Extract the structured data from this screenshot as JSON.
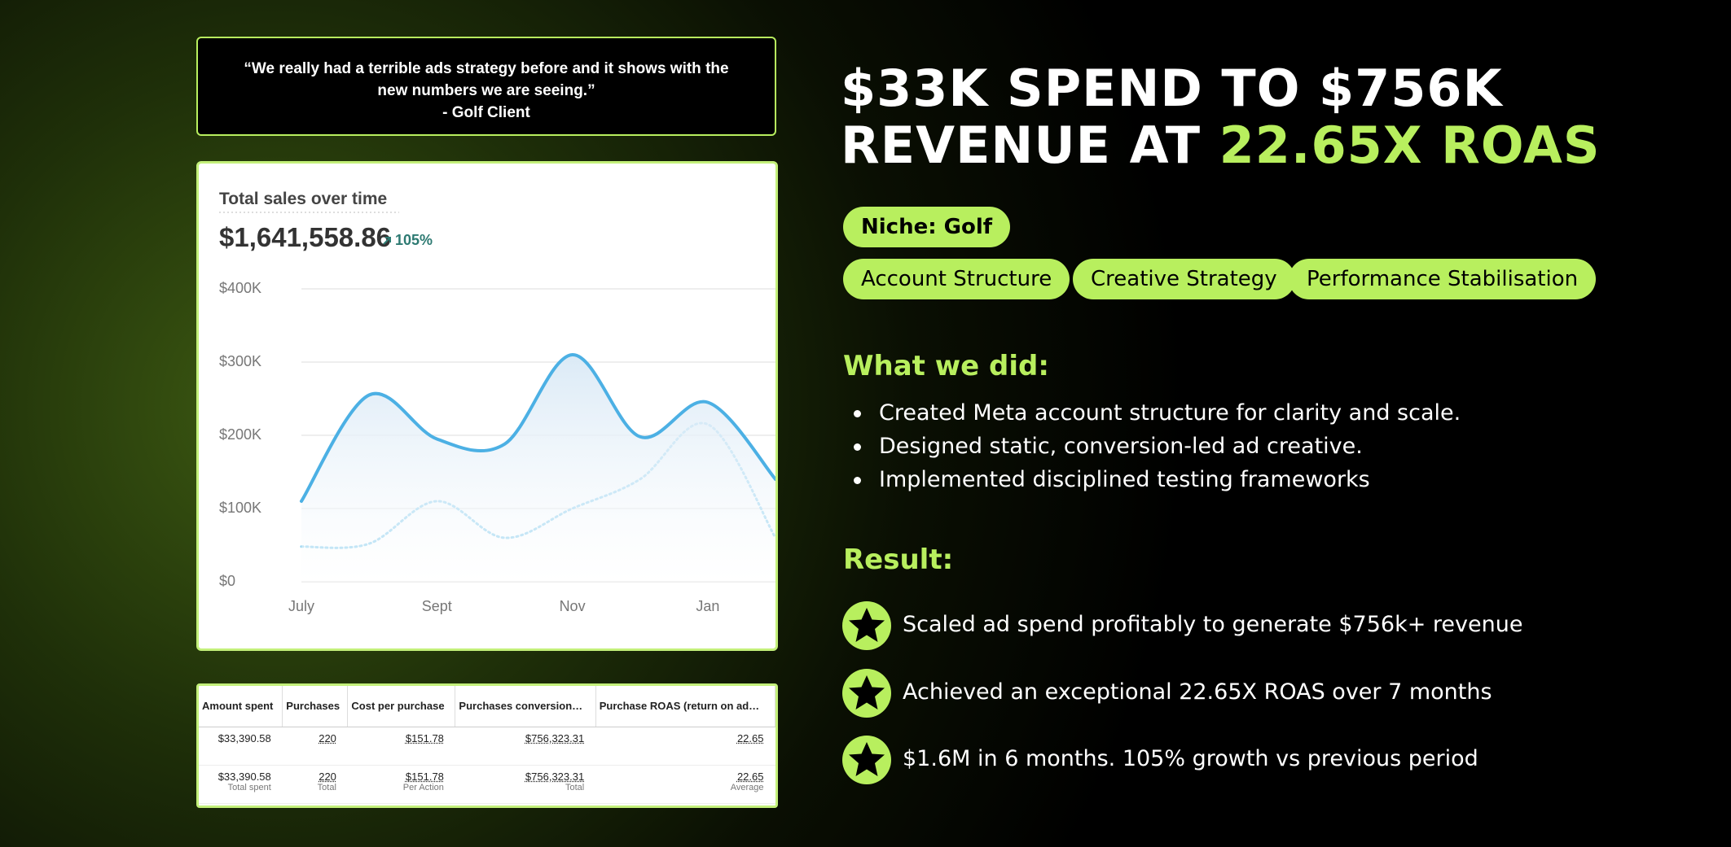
{
  "quote": {
    "text": "“We really had a terrible ads strategy before and it shows with the new numbers we are seeing.”",
    "author": "- Golf Client"
  },
  "chart_data": {
    "type": "line",
    "title": "Total sales over time",
    "subtitle": "$1,641,558.86",
    "annotation": "105%",
    "categories": [
      "July",
      null,
      "Sept",
      null,
      "Nov",
      null,
      "Jan",
      null
    ],
    "series": [
      {
        "color": "#4cb0e4",
        "style": "solid",
        "values": [
          110000,
          255000,
          195000,
          188000,
          310000,
          198000,
          245000,
          140000
        ]
      },
      {
        "color": "#8fd0ef",
        "style": "dotted",
        "values": [
          48000,
          52000,
          110000,
          60000,
          100000,
          140000,
          215000,
          60000
        ]
      }
    ],
    "ylim": [
      0,
      400000
    ],
    "yticks": [
      {
        "value": 0,
        "label": "$0"
      },
      {
        "value": 100000,
        "label": "$100K"
      },
      {
        "value": 200000,
        "label": "$200K"
      },
      {
        "value": 300000,
        "label": "$300K"
      },
      {
        "value": 400000,
        "label": "$400K"
      }
    ],
    "grid": true
  },
  "table": {
    "headers": [
      "Amount spent",
      "Purchases",
      "Cost per purchase",
      "Purchases conversion…",
      "Purchase ROAS (return on ad…"
    ],
    "rows": [
      [
        "$33,390.58",
        "220",
        "$151.78",
        "$756,323.31",
        "22.65"
      ],
      [
        "$33,390.58",
        "220",
        "$151.78",
        "$756,323.31",
        "22.65"
      ]
    ],
    "footer": [
      "Total spent",
      "Total",
      "Per Action",
      "Total",
      "Average"
    ]
  },
  "header": {
    "title": "$33K SPEND TO $756K REVENUE AT",
    "title_highlight": "22.65X ROAS"
  },
  "niche": "Niche: Golf",
  "tags": [
    "Account Structure",
    "Creative Strategy",
    "Performance Stabilisation"
  ],
  "what_we_did": {
    "heading": "What we did:",
    "items": [
      "Created Meta account structure for clarity and scale.",
      "Designed static, conversion-led ad creative.",
      "Implemented disciplined testing frameworks"
    ]
  },
  "result": {
    "heading": "Result:",
    "items": [
      "Scaled ad spend profitably to generate $756k+ revenue",
      "Achieved an exceptional 22.65X ROAS over 7 months",
      "$1.6M in 6 months. 105% growth vs previous period"
    ]
  }
}
